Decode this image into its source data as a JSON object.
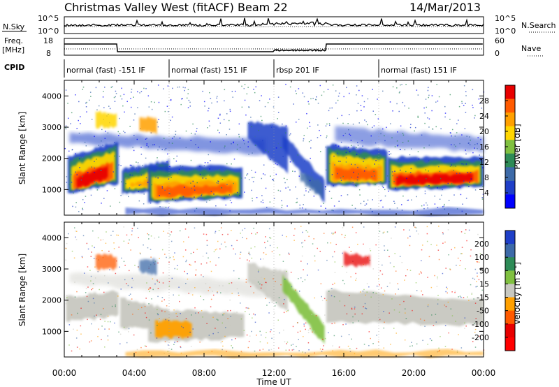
{
  "header": {
    "title": "Christmas Valley West (fitACF)",
    "beam": "Beam 22",
    "date": "14/Mar/2013"
  },
  "nsky_panel": {
    "left_label": "N.Sky",
    "left_ticks": [
      "10^5",
      "10^0"
    ],
    "right_label": "N.Search",
    "right_ticks": [
      "10^5",
      "10^0"
    ]
  },
  "freq_panel": {
    "left_label_1": "Freq.",
    "left_label_2": "[MHz]",
    "left_ticks": [
      "18",
      "8"
    ],
    "right_label": "Nave",
    "right_ticks": [
      "60",
      "0"
    ]
  },
  "cpid": {
    "label": "CPID",
    "segments": [
      {
        "start_hour": 0,
        "end_hour": 6,
        "text": "normal (fast) -151 IF"
      },
      {
        "start_hour": 6,
        "end_hour": 12,
        "text": "normal (fast) 151 IF"
      },
      {
        "start_hour": 12,
        "end_hour": 18,
        "text": "rbsp 201 IF"
      },
      {
        "start_hour": 18,
        "end_hour": 24,
        "text": "normal (fast) 151 IF"
      }
    ]
  },
  "chart_data": [
    {
      "type": "heatmap",
      "name": "power",
      "ylabel": "Slant Range [km]",
      "xlabel": "Time UT",
      "xlim": [
        0,
        24
      ],
      "ylim": [
        180,
        4500
      ],
      "y_ticks": [
        1000,
        2000,
        3000,
        4000
      ],
      "x_ticks": [
        "00:00",
        "04:00",
        "08:00",
        "12:00",
        "16:00",
        "20:00",
        "00:00"
      ],
      "colorbar": {
        "label": "Power [dB]",
        "ticks": [
          "28",
          "24",
          "20",
          "16",
          "12",
          "8",
          "4"
        ],
        "colors": [
          "#e80000",
          "#ff5a00",
          "#ffa000",
          "#ffd600",
          "#80c040",
          "#2e8b57",
          "#3d6aa8",
          "#1f3fc8",
          "#0000ff"
        ]
      },
      "features": [
        {
          "t0": 0.3,
          "t1": 3.1,
          "r0": 1150,
          "r1": 1800,
          "db": 24
        },
        {
          "t0": 4.2,
          "t1": 10.0,
          "r0": 700,
          "r1": 1500,
          "db": 18
        },
        {
          "t0": 15.0,
          "t1": 24.0,
          "r0": 1200,
          "r1": 2200,
          "db": 20
        }
      ]
    },
    {
      "type": "heatmap",
      "name": "velocity",
      "ylabel": "Slant Range [km]",
      "xlabel": "Time UT",
      "xlim": [
        0,
        24
      ],
      "ylim": [
        180,
        4500
      ],
      "y_ticks": [
        1000,
        2000,
        3000,
        4000
      ],
      "x_ticks": [
        "00:00",
        "04:00",
        "08:00",
        "12:00",
        "16:00",
        "20:00",
        "00:00"
      ],
      "colorbar": {
        "label": "Velocity [m s",
        "label_sup": "-1",
        "ticks": [
          "200",
          "100",
          "50",
          "15",
          "-15",
          "-50",
          "-100",
          "-200"
        ],
        "colors": [
          "#1f3fc8",
          "#3d6aa8",
          "#2e8b57",
          "#80c040",
          "#c8c8c0",
          "#ffa000",
          "#ff5a00",
          "#e80000",
          "#ff0000"
        ]
      }
    }
  ],
  "x_axis_title": "Time UT"
}
